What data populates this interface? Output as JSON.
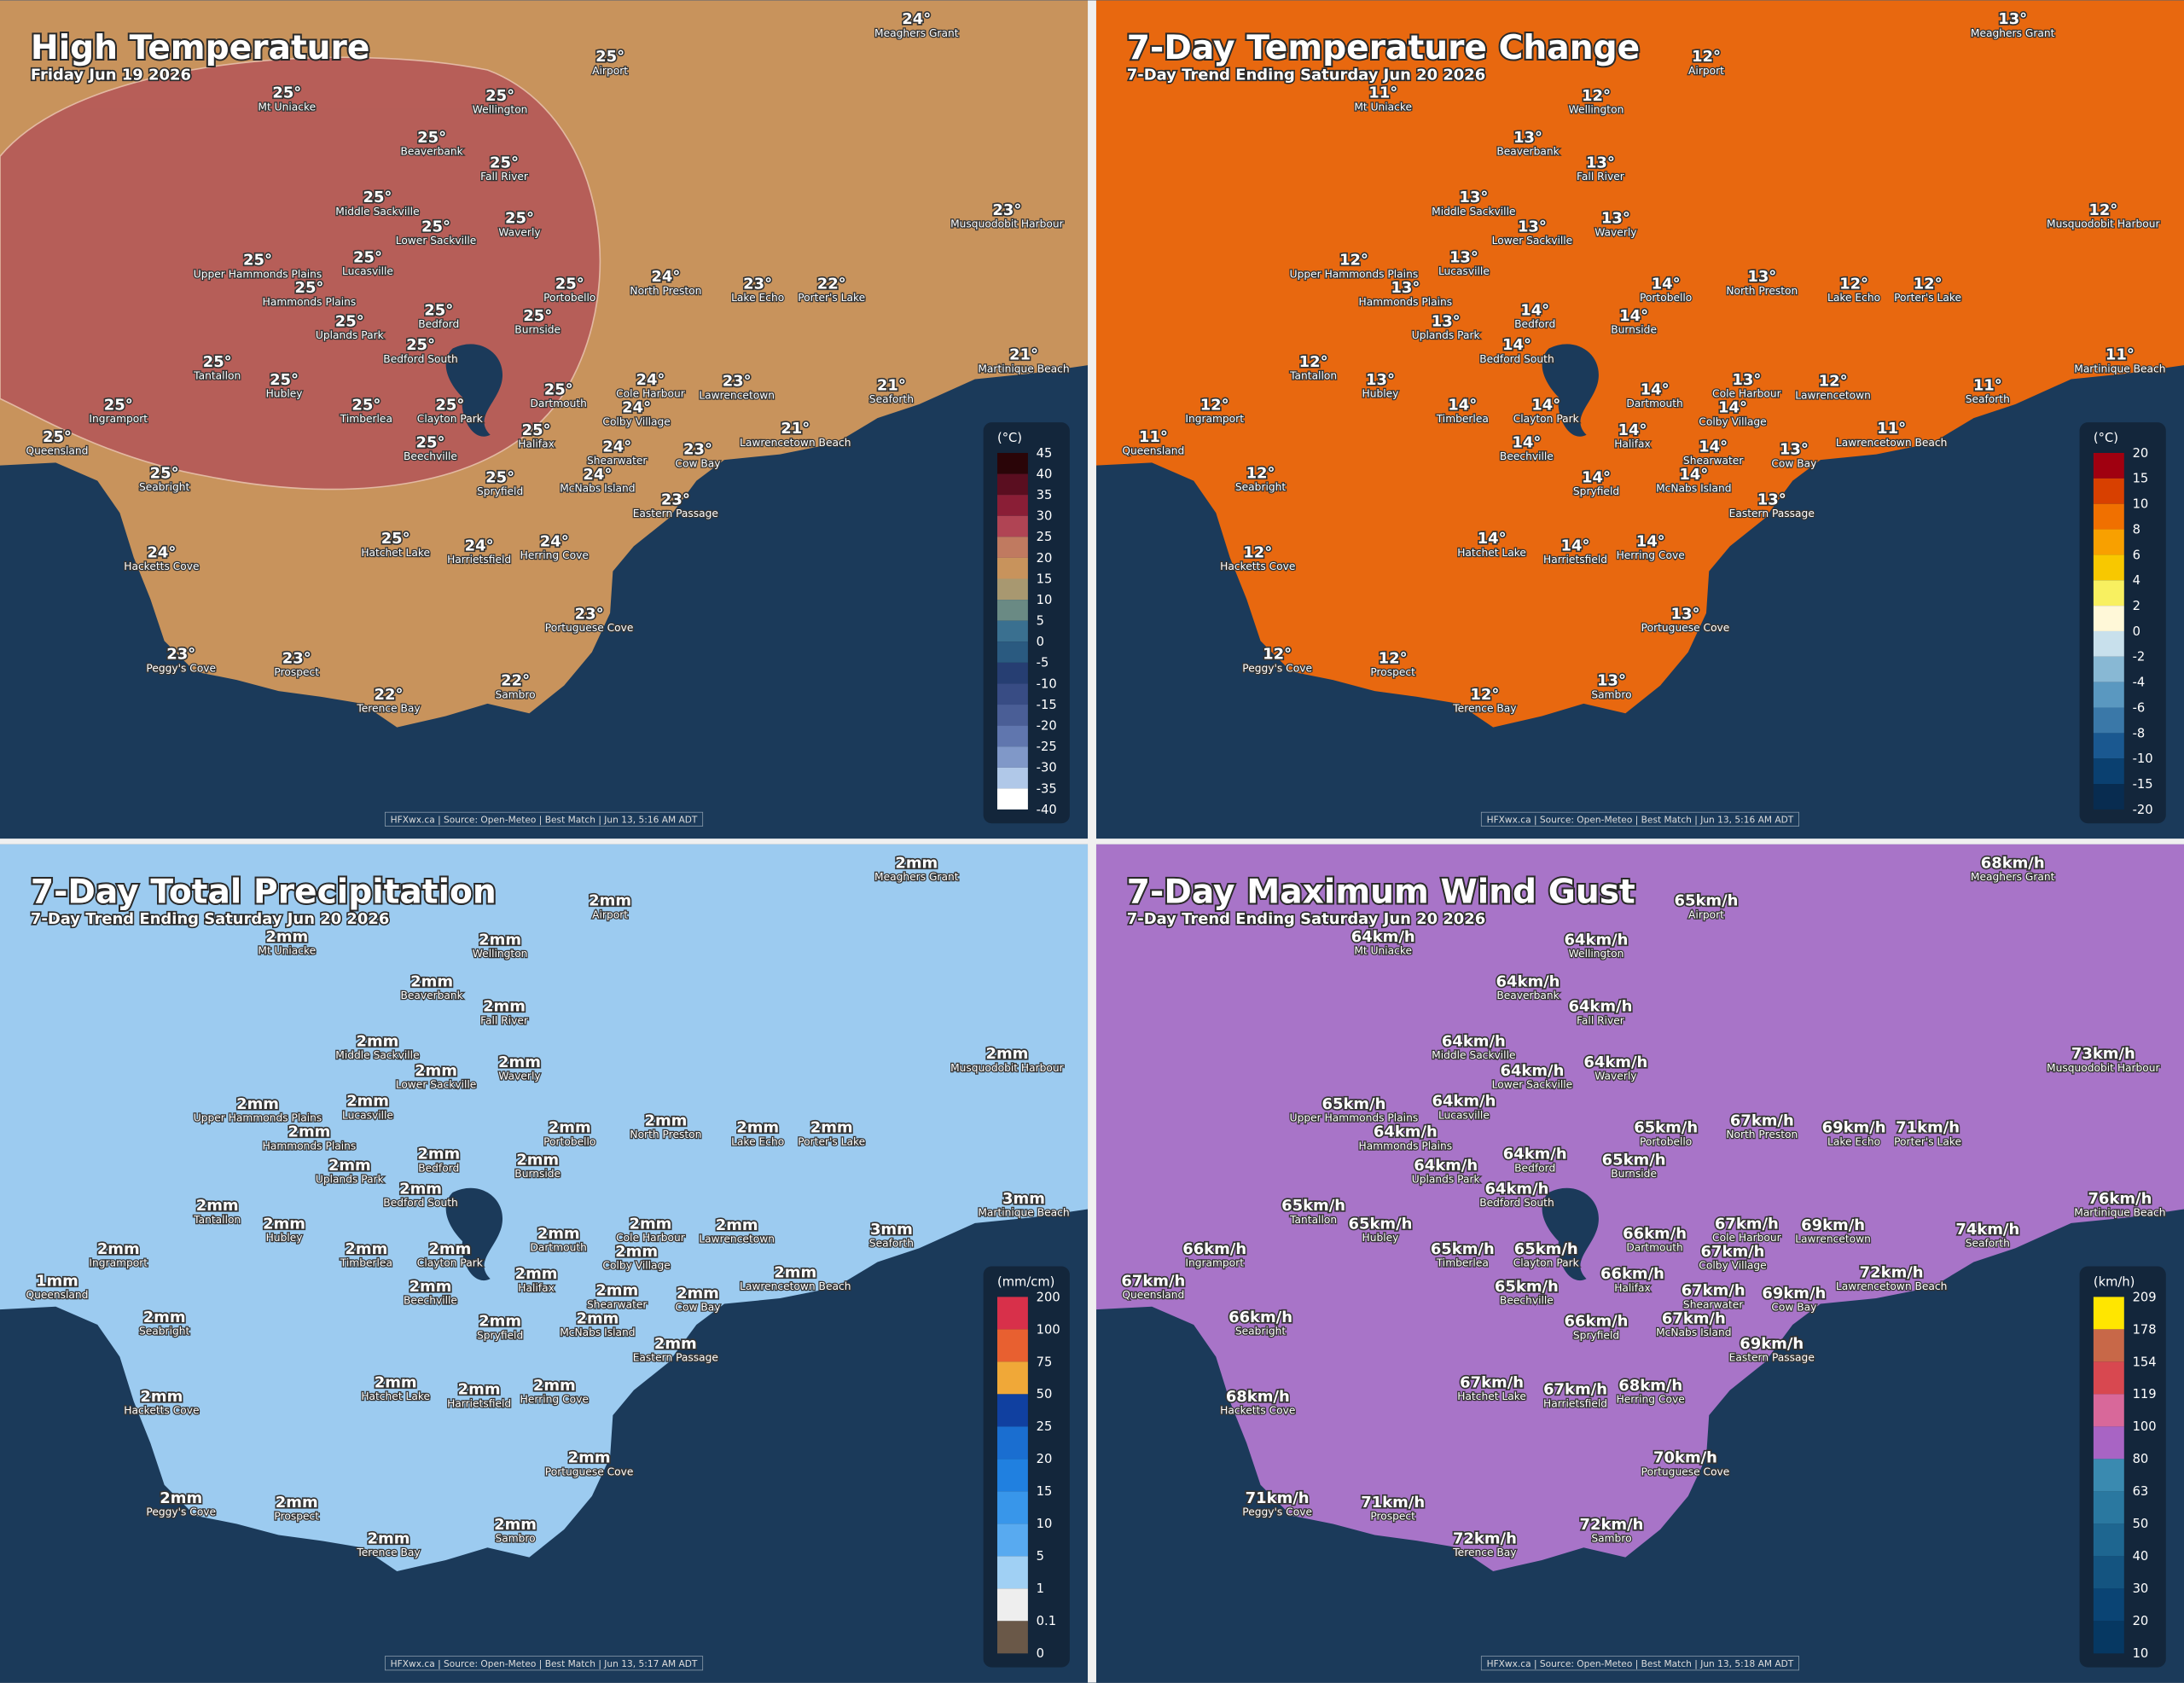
{
  "panels": [
    {
      "title": "High Temperature",
      "subtitle": "Friday Jun 19 2026",
      "land_color": "#c8935c",
      "zone_color": "#b45558",
      "legend": {
        "unit": "(°C)",
        "ticks": [
          45,
          40,
          35,
          30,
          25,
          20,
          15,
          10,
          5,
          0,
          -5,
          -10,
          -15,
          -20,
          -25,
          -30,
          -35,
          -40
        ],
        "colors": [
          "#2a0508",
          "#5a0e20",
          "#8a1e36",
          "#b04454",
          "#c07a60",
          "#c8935c",
          "#a89870",
          "#6a8a84",
          "#3a7090",
          "#2a5a80",
          "#263e72",
          "#384c84",
          "#4a5e96",
          "#6076ae",
          "#8098c8",
          "#b0c8e8",
          "#ffffff"
        ]
      },
      "places": [
        {
          "name": "Mt Uniacke",
          "value": "25°"
        },
        {
          "name": "Wellington",
          "value": "25°"
        },
        {
          "name": "Airport",
          "value": "25°"
        },
        {
          "name": "Meaghers Grant",
          "value": "24°"
        },
        {
          "name": "Beaverbank",
          "value": "25°"
        },
        {
          "name": "Fall River",
          "value": "25°"
        },
        {
          "name": "Middle Sackville",
          "value": "25°"
        },
        {
          "name": "Waverly",
          "value": "25°"
        },
        {
          "name": "Lower Sackville",
          "value": "25°"
        },
        {
          "name": "Upper Hammonds Plains",
          "value": "25°"
        },
        {
          "name": "Lucasville",
          "value": "25°"
        },
        {
          "name": "Hammonds Plains",
          "value": "25°"
        },
        {
          "name": "Portobello",
          "value": "25°"
        },
        {
          "name": "Musquodobit Harbour",
          "value": "23°"
        },
        {
          "name": "North Preston",
          "value": "24°"
        },
        {
          "name": "Lake Echo",
          "value": "23°"
        },
        {
          "name": "Porter's Lake",
          "value": "22°"
        },
        {
          "name": "Uplands Park",
          "value": "25°"
        },
        {
          "name": "Bedford",
          "value": "25°"
        },
        {
          "name": "Burnside",
          "value": "25°"
        },
        {
          "name": "Bedford South",
          "value": "25°"
        },
        {
          "name": "Tantallon",
          "value": "25°"
        },
        {
          "name": "Hubley",
          "value": "25°"
        },
        {
          "name": "Martinique Beach",
          "value": "21°"
        },
        {
          "name": "Dartmouth",
          "value": "25°"
        },
        {
          "name": "Cole Harbour",
          "value": "24°"
        },
        {
          "name": "Lawrencetown",
          "value": "23°"
        },
        {
          "name": "Seaforth",
          "value": "21°"
        },
        {
          "name": "Ingramport",
          "value": "25°"
        },
        {
          "name": "Timberlea",
          "value": "25°"
        },
        {
          "name": "Clayton Park",
          "value": "25°"
        },
        {
          "name": "Colby Village",
          "value": "24°"
        },
        {
          "name": "Queensland",
          "value": "25°"
        },
        {
          "name": "Halifax",
          "value": "25°"
        },
        {
          "name": "Beechville",
          "value": "25°"
        },
        {
          "name": "Shearwater",
          "value": "24°"
        },
        {
          "name": "Lawrencetown Beach",
          "value": "21°"
        },
        {
          "name": "Cow Bay",
          "value": "23°"
        },
        {
          "name": "McNabs Island",
          "value": "24°"
        },
        {
          "name": "Spryfield",
          "value": "25°"
        },
        {
          "name": "Seabright",
          "value": "25°"
        },
        {
          "name": "Eastern Passage",
          "value": "23°"
        },
        {
          "name": "Hatchet Lake",
          "value": "25°"
        },
        {
          "name": "Harrietsfield",
          "value": "24°"
        },
        {
          "name": "Herring Cove",
          "value": "24°"
        },
        {
          "name": "Hacketts Cove",
          "value": "24°"
        },
        {
          "name": "Portuguese Cove",
          "value": "23°"
        },
        {
          "name": "Peggy's Cove",
          "value": "23°"
        },
        {
          "name": "Prospect",
          "value": "23°"
        },
        {
          "name": "Sambro",
          "value": "22°"
        },
        {
          "name": "Terence Bay",
          "value": "22°"
        }
      ],
      "credit": "HFXwx.ca | Source: Open-Meteo | Best Match | Jun 13, 5:16 AM ADT"
    },
    {
      "title": "7-Day Temperature Change",
      "subtitle": "7-Day Trend Ending Saturday Jun 20 2026",
      "land_color": "#e8680f",
      "legend": {
        "unit": "(°C)",
        "ticks": [
          20,
          15,
          10,
          8,
          6,
          4,
          2,
          0,
          -2,
          -4,
          -6,
          -8,
          -10,
          -15,
          -20
        ],
        "colors": [
          "#a00010",
          "#d84000",
          "#f07000",
          "#f8a000",
          "#f8c800",
          "#f8f060",
          "#fff8d8",
          "#c8e0ec",
          "#88b8d4",
          "#5a98c0",
          "#3a78a8",
          "#1a5890",
          "#0a4070",
          "#082c50"
        ]
      },
      "places": [
        {
          "name": "Mt Uniacke",
          "value": "11°"
        },
        {
          "name": "Wellington",
          "value": "12°"
        },
        {
          "name": "Airport",
          "value": "12°"
        },
        {
          "name": "Meaghers Grant",
          "value": "13°"
        },
        {
          "name": "Beaverbank",
          "value": "13°"
        },
        {
          "name": "Fall River",
          "value": "13°"
        },
        {
          "name": "Middle Sackville",
          "value": "13°"
        },
        {
          "name": "Waverly",
          "value": "13°"
        },
        {
          "name": "Lower Sackville",
          "value": "13°"
        },
        {
          "name": "Upper Hammonds Plains",
          "value": "12°"
        },
        {
          "name": "Lucasville",
          "value": "13°"
        },
        {
          "name": "Hammonds Plains",
          "value": "13°"
        },
        {
          "name": "Portobello",
          "value": "14°"
        },
        {
          "name": "Musquodobit Harbour",
          "value": "12°"
        },
        {
          "name": "North Preston",
          "value": "13°"
        },
        {
          "name": "Lake Echo",
          "value": "12°"
        },
        {
          "name": "Porter's Lake",
          "value": "12°"
        },
        {
          "name": "Uplands Park",
          "value": "13°"
        },
        {
          "name": "Bedford",
          "value": "14°"
        },
        {
          "name": "Burnside",
          "value": "14°"
        },
        {
          "name": "Bedford South",
          "value": "14°"
        },
        {
          "name": "Tantallon",
          "value": "12°"
        },
        {
          "name": "Hubley",
          "value": "13°"
        },
        {
          "name": "Martinique Beach",
          "value": "11°"
        },
        {
          "name": "Dartmouth",
          "value": "14°"
        },
        {
          "name": "Cole Harbour",
          "value": "13°"
        },
        {
          "name": "Lawrencetown",
          "value": "12°"
        },
        {
          "name": "Seaforth",
          "value": "11°"
        },
        {
          "name": "Ingramport",
          "value": "12°"
        },
        {
          "name": "Timberlea",
          "value": "14°"
        },
        {
          "name": "Clayton Park",
          "value": "14°"
        },
        {
          "name": "Colby Village",
          "value": "14°"
        },
        {
          "name": "Queensland",
          "value": "11°"
        },
        {
          "name": "Halifax",
          "value": "14°"
        },
        {
          "name": "Beechville",
          "value": "14°"
        },
        {
          "name": "Shearwater",
          "value": "14°"
        },
        {
          "name": "Lawrencetown Beach",
          "value": "11°"
        },
        {
          "name": "Cow Bay",
          "value": "13°"
        },
        {
          "name": "McNabs Island",
          "value": "14°"
        },
        {
          "name": "Spryfield",
          "value": "14°"
        },
        {
          "name": "Seabright",
          "value": "12°"
        },
        {
          "name": "Eastern Passage",
          "value": "13°"
        },
        {
          "name": "Hatchet Lake",
          "value": "14°"
        },
        {
          "name": "Harrietsfield",
          "value": "14°"
        },
        {
          "name": "Herring Cove",
          "value": "14°"
        },
        {
          "name": "Hacketts Cove",
          "value": "12°"
        },
        {
          "name": "Portuguese Cove",
          "value": "13°"
        },
        {
          "name": "Peggy's Cove",
          "value": "12°"
        },
        {
          "name": "Prospect",
          "value": "12°"
        },
        {
          "name": "Sambro",
          "value": "13°"
        },
        {
          "name": "Terence Bay",
          "value": "12°"
        }
      ],
      "credit": "HFXwx.ca | Source: Open-Meteo | Best Match | Jun 13, 5:16 AM ADT"
    },
    {
      "title": "7-Day Total Precipitation",
      "subtitle": "7-Day Trend Ending Saturday Jun 20 2026",
      "land_color": "#9ccbf0",
      "legend": {
        "unit": "(mm/cm)",
        "ticks": [
          200,
          100,
          75,
          50,
          25,
          20,
          15,
          10,
          5,
          1,
          0.1,
          0
        ],
        "colors": [
          "#d8304a",
          "#e86030",
          "#f0a838",
          "#1040a0",
          "#1a6ed0",
          "#2080e0",
          "#3896ea",
          "#58aaf0",
          "#a0d0f4",
          "#eeeeee",
          "#6a5848"
        ]
      },
      "places": [
        {
          "name": "Mt Uniacke",
          "value": "2mm"
        },
        {
          "name": "Wellington",
          "value": "2mm"
        },
        {
          "name": "Airport",
          "value": "2mm"
        },
        {
          "name": "Meaghers Grant",
          "value": "2mm"
        },
        {
          "name": "Beaverbank",
          "value": "2mm"
        },
        {
          "name": "Fall River",
          "value": "2mm"
        },
        {
          "name": "Middle Sackville",
          "value": "2mm"
        },
        {
          "name": "Waverly",
          "value": "2mm"
        },
        {
          "name": "Lower Sackville",
          "value": "2mm"
        },
        {
          "name": "Upper Hammonds Plains",
          "value": "2mm"
        },
        {
          "name": "Lucasville",
          "value": "2mm"
        },
        {
          "name": "Hammonds Plains",
          "value": "2mm"
        },
        {
          "name": "Portobello",
          "value": "2mm"
        },
        {
          "name": "Musquodobit Harbour",
          "value": "2mm"
        },
        {
          "name": "North Preston",
          "value": "2mm"
        },
        {
          "name": "Lake Echo",
          "value": "2mm"
        },
        {
          "name": "Porter's Lake",
          "value": "2mm"
        },
        {
          "name": "Uplands Park",
          "value": "2mm"
        },
        {
          "name": "Bedford",
          "value": "2mm"
        },
        {
          "name": "Burnside",
          "value": "2mm"
        },
        {
          "name": "Bedford South",
          "value": "2mm"
        },
        {
          "name": "Tantallon",
          "value": "2mm"
        },
        {
          "name": "Hubley",
          "value": "2mm"
        },
        {
          "name": "Martinique Beach",
          "value": "3mm"
        },
        {
          "name": "Dartmouth",
          "value": "2mm"
        },
        {
          "name": "Cole Harbour",
          "value": "2mm"
        },
        {
          "name": "Lawrencetown",
          "value": "2mm"
        },
        {
          "name": "Seaforth",
          "value": "3mm"
        },
        {
          "name": "Ingramport",
          "value": "2mm"
        },
        {
          "name": "Timberlea",
          "value": "2mm"
        },
        {
          "name": "Clayton Park",
          "value": "2mm"
        },
        {
          "name": "Colby Village",
          "value": "2mm"
        },
        {
          "name": "Queensland",
          "value": "1mm"
        },
        {
          "name": "Halifax",
          "value": "2mm"
        },
        {
          "name": "Beechville",
          "value": "2mm"
        },
        {
          "name": "Shearwater",
          "value": "2mm"
        },
        {
          "name": "Lawrencetown Beach",
          "value": "2mm"
        },
        {
          "name": "Cow Bay",
          "value": "2mm"
        },
        {
          "name": "McNabs Island",
          "value": "2mm"
        },
        {
          "name": "Spryfield",
          "value": "2mm"
        },
        {
          "name": "Seabright",
          "value": "2mm"
        },
        {
          "name": "Eastern Passage",
          "value": "2mm"
        },
        {
          "name": "Hatchet Lake",
          "value": "2mm"
        },
        {
          "name": "Harrietsfield",
          "value": "2mm"
        },
        {
          "name": "Herring Cove",
          "value": "2mm"
        },
        {
          "name": "Hacketts Cove",
          "value": "2mm"
        },
        {
          "name": "Portuguese Cove",
          "value": "2mm"
        },
        {
          "name": "Peggy's Cove",
          "value": "2mm"
        },
        {
          "name": "Prospect",
          "value": "2mm"
        },
        {
          "name": "Sambro",
          "value": "2mm"
        },
        {
          "name": "Terence Bay",
          "value": "2mm"
        }
      ],
      "credit": "HFXwx.ca | Source: Open-Meteo | Best Match | Jun 13, 5:17 AM ADT"
    },
    {
      "title": "7-Day Maximum Wind Gust",
      "subtitle": "7-Day Trend Ending Saturday Jun 20 2026",
      "land_color": "#a874c8",
      "legend": {
        "unit": "(km/h)",
        "ticks": [
          209,
          178,
          154,
          119,
          100,
          80,
          63,
          50,
          40,
          30,
          20,
          10
        ],
        "colors": [
          "#ffe600",
          "#c86848",
          "#d84850",
          "#d8689a",
          "#a864c4",
          "#3a8ab0",
          "#2a78a0",
          "#1e6690",
          "#145480",
          "#0a4474",
          "#063862"
        ]
      },
      "places": [
        {
          "name": "Mt Uniacke",
          "value": "64km/h"
        },
        {
          "name": "Wellington",
          "value": "64km/h"
        },
        {
          "name": "Airport",
          "value": "65km/h"
        },
        {
          "name": "Meaghers Grant",
          "value": "68km/h"
        },
        {
          "name": "Beaverbank",
          "value": "64km/h"
        },
        {
          "name": "Fall River",
          "value": "64km/h"
        },
        {
          "name": "Middle Sackville",
          "value": "64km/h"
        },
        {
          "name": "Waverly",
          "value": "64km/h"
        },
        {
          "name": "Lower Sackville",
          "value": "64km/h"
        },
        {
          "name": "Upper Hammonds Plains",
          "value": "65km/h"
        },
        {
          "name": "Lucasville",
          "value": "64km/h"
        },
        {
          "name": "Hammonds Plains",
          "value": "64km/h"
        },
        {
          "name": "Portobello",
          "value": "65km/h"
        },
        {
          "name": "Musquodobit Harbour",
          "value": "73km/h"
        },
        {
          "name": "North Preston",
          "value": "67km/h"
        },
        {
          "name": "Lake Echo",
          "value": "69km/h"
        },
        {
          "name": "Porter's Lake",
          "value": "71km/h"
        },
        {
          "name": "Uplands Park",
          "value": "64km/h"
        },
        {
          "name": "Bedford",
          "value": "64km/h"
        },
        {
          "name": "Burnside",
          "value": "65km/h"
        },
        {
          "name": "Bedford South",
          "value": "64km/h"
        },
        {
          "name": "Tantallon",
          "value": "65km/h"
        },
        {
          "name": "Hubley",
          "value": "65km/h"
        },
        {
          "name": "Martinique Beach",
          "value": "76km/h"
        },
        {
          "name": "Dartmouth",
          "value": "66km/h"
        },
        {
          "name": "Cole Harbour",
          "value": "67km/h"
        },
        {
          "name": "Lawrencetown",
          "value": "69km/h"
        },
        {
          "name": "Seaforth",
          "value": "74km/h"
        },
        {
          "name": "Ingramport",
          "value": "66km/h"
        },
        {
          "name": "Timberlea",
          "value": "65km/h"
        },
        {
          "name": "Clayton Park",
          "value": "65km/h"
        },
        {
          "name": "Colby Village",
          "value": "67km/h"
        },
        {
          "name": "Queensland",
          "value": "67km/h"
        },
        {
          "name": "Halifax",
          "value": "66km/h"
        },
        {
          "name": "Beechville",
          "value": "65km/h"
        },
        {
          "name": "Shearwater",
          "value": "67km/h"
        },
        {
          "name": "Lawrencetown Beach",
          "value": "72km/h"
        },
        {
          "name": "Cow Bay",
          "value": "69km/h"
        },
        {
          "name": "McNabs Island",
          "value": "67km/h"
        },
        {
          "name": "Spryfield",
          "value": "66km/h"
        },
        {
          "name": "Seabright",
          "value": "66km/h"
        },
        {
          "name": "Eastern Passage",
          "value": "69km/h"
        },
        {
          "name": "Hatchet Lake",
          "value": "67km/h"
        },
        {
          "name": "Harrietsfield",
          "value": "67km/h"
        },
        {
          "name": "Herring Cove",
          "value": "68km/h"
        },
        {
          "name": "Hacketts Cove",
          "value": "68km/h"
        },
        {
          "name": "Portuguese Cove",
          "value": "70km/h"
        },
        {
          "name": "Peggy's Cove",
          "value": "71km/h"
        },
        {
          "name": "Prospect",
          "value": "71km/h"
        },
        {
          "name": "Sambro",
          "value": "72km/h"
        },
        {
          "name": "Terence Bay",
          "value": "72km/h"
        }
      ],
      "credit": "HFXwx.ca | Source: Open-Meteo | Best Match | Jun 13, 5:18 AM ADT"
    }
  ]
}
